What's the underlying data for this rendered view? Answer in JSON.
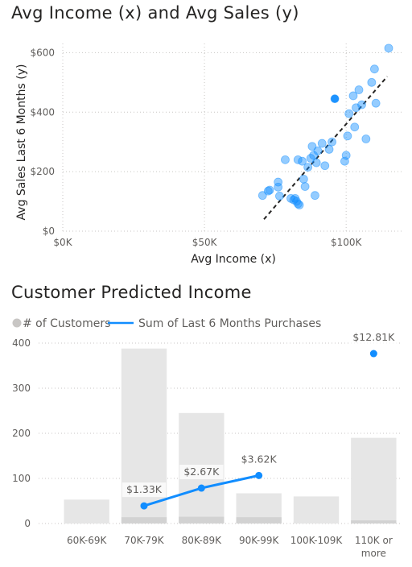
{
  "charts": {
    "scatter_title": "Avg Income (x) and Avg Sales (y)",
    "combo_title": "Customer Predicted Income"
  },
  "chart_data": [
    {
      "type": "scatter",
      "title": "Avg Income (x) and Avg Sales (y)",
      "xlabel": "Avg Income (x)",
      "ylabel": "Avg Sales Last 6 Months (y)",
      "xlim": [
        0,
        115000
      ],
      "ylim": [
        0,
        620
      ],
      "x_ticks": [
        0,
        50000,
        100000
      ],
      "x_tick_labels": [
        "$0K",
        "$50K",
        "$100K"
      ],
      "y_ticks": [
        0,
        200,
        400,
        600
      ],
      "y_tick_labels": [
        "$0",
        "$200",
        "$400",
        "$600"
      ],
      "grid": true,
      "marker_color": "#118DFF",
      "highlight_color": "#118DFF",
      "trendline": {
        "style": "dashed",
        "color": "#252423",
        "x0": 71000,
        "y0": 40,
        "x1": 114500,
        "y1": 520
      },
      "points": [
        {
          "x": 70500,
          "y": 120
        },
        {
          "x": 72500,
          "y": 135
        },
        {
          "x": 73000,
          "y": 138
        },
        {
          "x": 76000,
          "y": 148
        },
        {
          "x": 76000,
          "y": 165
        },
        {
          "x": 76500,
          "y": 118
        },
        {
          "x": 78500,
          "y": 240
        },
        {
          "x": 80500,
          "y": 110
        },
        {
          "x": 81500,
          "y": 105
        },
        {
          "x": 82000,
          "y": 110
        },
        {
          "x": 82500,
          "y": 100
        },
        {
          "x": 83000,
          "y": 92
        },
        {
          "x": 83500,
          "y": 88
        },
        {
          "x": 83000,
          "y": 240
        },
        {
          "x": 84500,
          "y": 235
        },
        {
          "x": 85000,
          "y": 175
        },
        {
          "x": 85500,
          "y": 150
        },
        {
          "x": 86500,
          "y": 215
        },
        {
          "x": 87500,
          "y": 245
        },
        {
          "x": 88000,
          "y": 285
        },
        {
          "x": 88500,
          "y": 255
        },
        {
          "x": 89000,
          "y": 120
        },
        {
          "x": 89500,
          "y": 230
        },
        {
          "x": 90000,
          "y": 270
        },
        {
          "x": 91500,
          "y": 295
        },
        {
          "x": 92500,
          "y": 220
        },
        {
          "x": 94000,
          "y": 275
        },
        {
          "x": 95000,
          "y": 300
        },
        {
          "x": 96000,
          "y": 445,
          "highlight": true
        },
        {
          "x": 99500,
          "y": 235
        },
        {
          "x": 100000,
          "y": 255
        },
        {
          "x": 100500,
          "y": 320
        },
        {
          "x": 101000,
          "y": 395
        },
        {
          "x": 102500,
          "y": 455
        },
        {
          "x": 103000,
          "y": 350
        },
        {
          "x": 103500,
          "y": 415
        },
        {
          "x": 104500,
          "y": 475
        },
        {
          "x": 105500,
          "y": 425
        },
        {
          "x": 107000,
          "y": 310
        },
        {
          "x": 109000,
          "y": 500
        },
        {
          "x": 110000,
          "y": 545
        },
        {
          "x": 110500,
          "y": 430
        },
        {
          "x": 115000,
          "y": 615
        }
      ]
    },
    {
      "type": "bar",
      "subtype": "bar-line-combo",
      "title": "Customer Predicted Income",
      "categories": [
        "60K-69K",
        "70K-79K",
        "80K-89K",
        "90K-99K",
        "100K-109K",
        "110K or more"
      ],
      "ylim": [
        0,
        400
      ],
      "y_ticks": [
        0,
        100,
        200,
        300,
        400
      ],
      "grid": true,
      "legend_position": "top-left",
      "series": [
        {
          "name": "# of Customers",
          "type": "bar",
          "color": "#e6e6e6",
          "values": [
            53,
            388,
            245,
            67,
            60,
            190
          ],
          "inner_values": [
            0,
            14,
            15,
            14,
            0,
            7
          ],
          "inner_color": "#d2d2d2"
        },
        {
          "name": "Sum of Last 6 Months Purchases",
          "type": "line",
          "color": "#118DFF",
          "values": [
            null,
            1330,
            2670,
            3620,
            null,
            12810
          ],
          "data_labels": [
            "",
            "$1.33K",
            "$2.67K",
            "$3.62K",
            "",
            "$12.81K"
          ]
        }
      ]
    }
  ]
}
